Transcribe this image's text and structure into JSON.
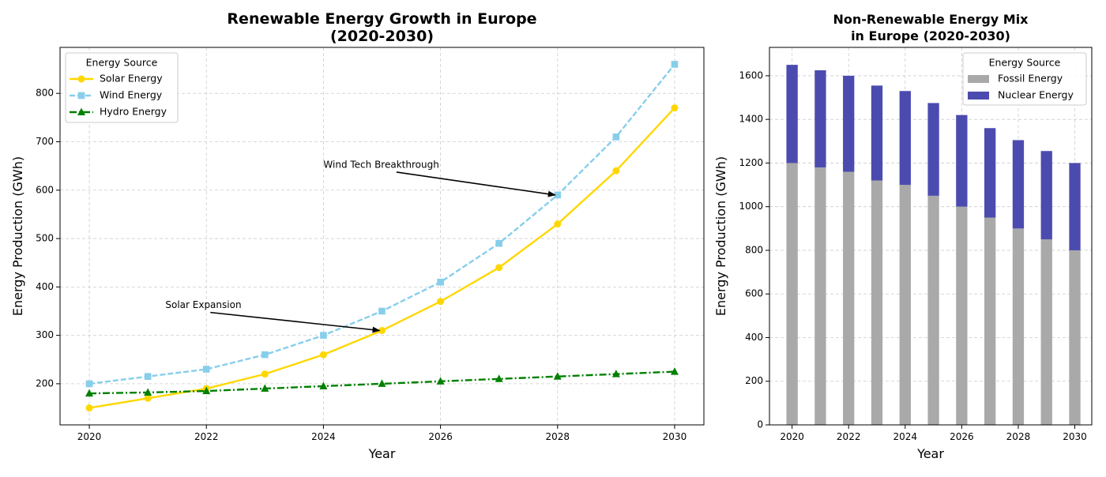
{
  "chart_data": [
    {
      "type": "line",
      "title": "Renewable Energy Growth in Europe\n(2020-2030)",
      "xlabel": "Year",
      "ylabel": "Energy Production (GWh)",
      "x": [
        2020,
        2021,
        2022,
        2023,
        2024,
        2025,
        2026,
        2027,
        2028,
        2029,
        2030
      ],
      "xticks": [
        2020,
        2022,
        2024,
        2026,
        2028,
        2030
      ],
      "yticks": [
        200,
        300,
        400,
        500,
        600,
        700,
        800
      ],
      "xlim": [
        2019.5,
        2030.5
      ],
      "ylim": [
        115,
        895
      ],
      "grid": true,
      "legend": {
        "title": "Energy Source",
        "placement": "upper-left"
      },
      "series": [
        {
          "name": "Solar Energy",
          "color": "#FFD700",
          "marker": "circle",
          "linestyle": "solid",
          "values": [
            150,
            170,
            190,
            220,
            260,
            310,
            370,
            440,
            530,
            640,
            770
          ]
        },
        {
          "name": "Wind Energy",
          "color": "#87CEEB",
          "marker": "square",
          "linestyle": "dashed",
          "values": [
            200,
            215,
            230,
            260,
            300,
            350,
            410,
            490,
            590,
            710,
            860
          ]
        },
        {
          "name": "Hydro Energy",
          "color": "#008000",
          "marker": "triangle",
          "linestyle": "dashdot",
          "values": [
            180,
            182,
            185,
            190,
            195,
            200,
            205,
            210,
            215,
            220,
            225
          ]
        }
      ],
      "annotations": [
        {
          "text": "Solar Expansion",
          "text_at": [
            2021.3,
            362
          ],
          "arrow_to": [
            2025,
            310
          ]
        },
        {
          "text": "Wind Tech Breakthrough",
          "text_at": [
            2024,
            652
          ],
          "arrow_to": [
            2028,
            590
          ]
        }
      ]
    },
    {
      "type": "bar",
      "stacked": true,
      "title": "Non-Renewable Energy Mix\nin Europe (2020-2030)",
      "xlabel": "Year",
      "ylabel": "Energy Production (GWh)",
      "x": [
        2020,
        2021,
        2022,
        2023,
        2024,
        2025,
        2026,
        2027,
        2028,
        2029,
        2030
      ],
      "xticks": [
        2020,
        2022,
        2024,
        2026,
        2028,
        2030
      ],
      "yticks": [
        0,
        200,
        400,
        600,
        800,
        1000,
        1200,
        1400,
        1600
      ],
      "xlim": [
        2019.2,
        2030.6
      ],
      "ylim": [
        0,
        1730
      ],
      "bar_width": 0.4,
      "grid": true,
      "legend": {
        "title": "Energy Source",
        "placement": "upper-right"
      },
      "series": [
        {
          "name": "Fossil Energy",
          "color": "#A9A9A9",
          "values": [
            1200,
            1180,
            1160,
            1120,
            1100,
            1050,
            1000,
            950,
            900,
            850,
            800
          ]
        },
        {
          "name": "Nuclear Energy",
          "color": "#4B4BAF",
          "values": [
            450,
            445,
            440,
            435,
            430,
            425,
            420,
            410,
            405,
            405,
            400
          ]
        }
      ]
    }
  ]
}
